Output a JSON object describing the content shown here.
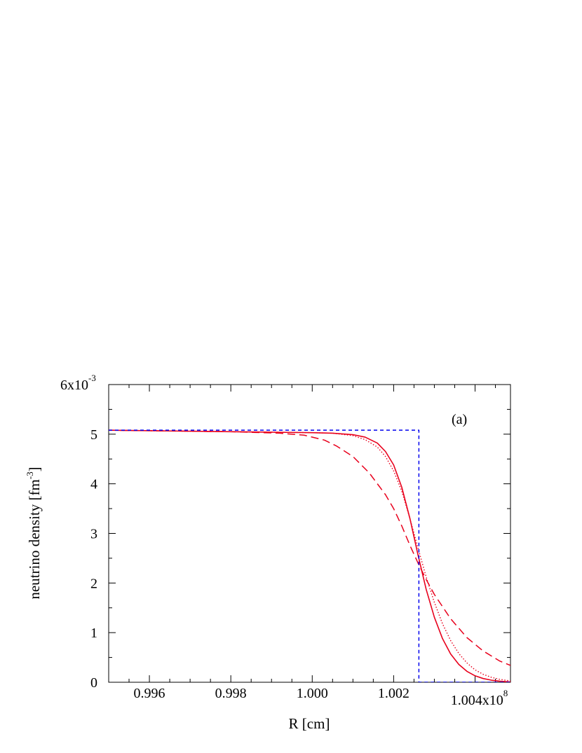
{
  "chart_data": {
    "type": "line",
    "panel_label": "(a)",
    "xlabel": "R [cm]",
    "ylabel": {
      "prefix": "neutrino density [fm",
      "exponent": "-3",
      "suffix": "]"
    },
    "xlim": [
      0.995,
      1.00487
    ],
    "ylim": [
      0,
      6
    ],
    "x_ticks": [
      0.996,
      0.998,
      1.0,
      1.002,
      1.004
    ],
    "x_tick_labels": [
      "0.996",
      "0.998",
      "1.000",
      "1.002",
      "1.004x10"
    ],
    "x_multiplier_exponent": "8",
    "y_ticks": [
      0,
      1,
      2,
      3,
      4,
      5,
      6
    ],
    "y_tick_labels": [
      "0",
      "1",
      "2",
      "3",
      "4",
      "5",
      "6x10"
    ],
    "y_multiplier_exponent": "-3",
    "grid": false,
    "colors": {
      "red": "#e8001c",
      "blue": "#0000ee"
    },
    "series": [
      {
        "style": "solid",
        "color": "#e8001c",
        "x": [
          0.995,
          0.998,
          0.999,
          1.0,
          1.0005,
          1.001,
          1.0013,
          1.0016,
          1.0018,
          1.002,
          1.0022,
          1.0024,
          1.0026,
          1.0028,
          1.003,
          1.0032,
          1.0034,
          1.0036,
          1.0038,
          1.004,
          1.0042,
          1.0044,
          1.0046,
          1.0048,
          1.00487
        ],
        "y": [
          5.08,
          5.05,
          5.04,
          5.03,
          5.02,
          4.99,
          4.94,
          4.82,
          4.65,
          4.38,
          3.93,
          3.3,
          2.56,
          1.87,
          1.31,
          0.88,
          0.57,
          0.36,
          0.22,
          0.13,
          0.075,
          0.042,
          0.022,
          0.01,
          0.005
        ]
      },
      {
        "style": "dotted",
        "color": "#e8001c",
        "x": [
          0.995,
          0.998,
          0.999,
          1.0,
          1.0005,
          1.001,
          1.0013,
          1.0016,
          1.0018,
          1.002,
          1.0022,
          1.0024,
          1.0026,
          1.0028,
          1.003,
          1.0032,
          1.0034,
          1.0036,
          1.0038,
          1.004,
          1.0042,
          1.0044,
          1.0046,
          1.0048,
          1.00487
        ],
        "y": [
          5.08,
          5.05,
          5.04,
          5.03,
          5.02,
          4.97,
          4.89,
          4.74,
          4.55,
          4.26,
          3.85,
          3.3,
          2.7,
          2.12,
          1.61,
          1.18,
          0.84,
          0.58,
          0.39,
          0.25,
          0.16,
          0.1,
          0.06,
          0.035,
          0.027
        ]
      },
      {
        "style": "dashed",
        "color": "#e8001c",
        "x": [
          0.995,
          0.998,
          0.9992,
          0.9998,
          1.0003,
          1.0006,
          1.001,
          1.0014,
          1.0018,
          1.002,
          1.0022,
          1.0024,
          1.0026,
          1.0028,
          1.003,
          1.0034,
          1.0038,
          1.0042,
          1.0046,
          1.00487
        ],
        "y": [
          5.08,
          5.05,
          5.02,
          4.98,
          4.88,
          4.76,
          4.55,
          4.22,
          3.78,
          3.5,
          3.15,
          2.76,
          2.4,
          2.07,
          1.77,
          1.28,
          0.9,
          0.63,
          0.43,
          0.34
        ]
      },
      {
        "style": "short-dashed",
        "color": "#0000ee",
        "x": [
          0.995,
          1.00262,
          1.00262,
          1.00487
        ],
        "y": [
          5.08,
          5.08,
          0.0,
          0.0
        ]
      }
    ]
  }
}
